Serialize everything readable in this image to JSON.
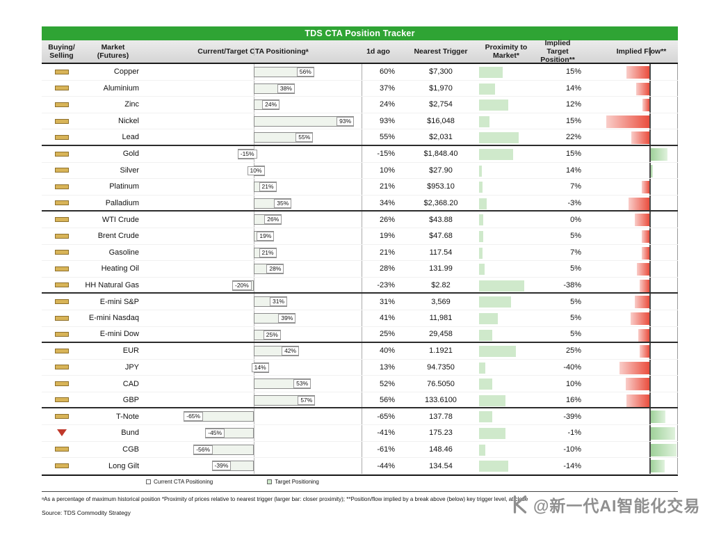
{
  "title": "TDS CTA Position Tracker",
  "header": {
    "columns": [
      "Buying/ Selling",
      "Market (Futures)",
      "Current/Target CTA Positioningᵃ",
      "1d ago",
      "Nearest Trigger",
      "Proximity to Market*",
      "Implied Target Position**",
      "Implied Flow**"
    ]
  },
  "chart_data": {
    "type": "table",
    "title": "TDS CTA Position Tracker",
    "columns": [
      "Buying/Selling",
      "Market (Futures)",
      "Current/Target CTA Positioning",
      "1d ago",
      "Nearest Trigger",
      "Proximity to Market",
      "Implied Target Position",
      "Implied Flow"
    ],
    "positioning_axis": "percent of maximum historical position, zero axis centered, range approx -100 to 100",
    "rows": [
      {
        "market": "Copper",
        "signal": "flat",
        "current": 56,
        "positioning_label": "56%",
        "one_day_ago": "60%",
        "nearest_trigger": "$7,300",
        "proximity": 0.45,
        "implied_target": "15%",
        "implied_flow": -41,
        "group_end": false
      },
      {
        "market": "Aluminium",
        "signal": "flat",
        "current": 38,
        "positioning_label": "38%",
        "one_day_ago": "37%",
        "nearest_trigger": "$1,970",
        "proximity": 0.3,
        "implied_target": "14%",
        "implied_flow": -24,
        "group_end": false
      },
      {
        "market": "Zinc",
        "signal": "flat",
        "current": 24,
        "positioning_label": "24%",
        "one_day_ago": "24%",
        "nearest_trigger": "$2,754",
        "proximity": 0.55,
        "implied_target": "12%",
        "implied_flow": -12,
        "group_end": false
      },
      {
        "market": "Nickel",
        "signal": "flat",
        "current": 93,
        "positioning_label": "93%",
        "one_day_ago": "93%",
        "nearest_trigger": "$16,048",
        "proximity": 0.2,
        "implied_target": "15%",
        "implied_flow": -78,
        "group_end": false
      },
      {
        "market": "Lead",
        "signal": "flat",
        "current": 55,
        "positioning_label": "55%",
        "one_day_ago": "55%",
        "nearest_trigger": "$2,031",
        "proximity": 0.75,
        "implied_target": "22%",
        "implied_flow": -33,
        "group_end": true
      },
      {
        "market": "Gold",
        "signal": "flat",
        "current": -15,
        "positioning_label": "-15%",
        "one_day_ago": "-15%",
        "nearest_trigger": "$1,848.40",
        "proximity": 0.65,
        "implied_target": "15%",
        "implied_flow": 30,
        "group_end": false
      },
      {
        "market": "Silver",
        "signal": "flat",
        "current": 10,
        "positioning_label": "10%",
        "one_day_ago": "10%",
        "nearest_trigger": "$27.90",
        "proximity": 0.05,
        "implied_target": "14%",
        "implied_flow": 4,
        "group_end": false
      },
      {
        "market": "Platinum",
        "signal": "flat",
        "current": 21,
        "positioning_label": "21%",
        "one_day_ago": "21%",
        "nearest_trigger": "$953.10",
        "proximity": 0.06,
        "implied_target": "7%",
        "implied_flow": -14,
        "group_end": false
      },
      {
        "market": "Palladium",
        "signal": "flat",
        "current": 35,
        "positioning_label": "35%",
        "one_day_ago": "34%",
        "nearest_trigger": "$2,368.20",
        "proximity": 0.15,
        "implied_target": "-3%",
        "implied_flow": -37,
        "group_end": true
      },
      {
        "market": "WTI Crude",
        "signal": "flat",
        "current": 26,
        "positioning_label": "26%",
        "one_day_ago": "26%",
        "nearest_trigger": "$43.88",
        "proximity": 0.08,
        "implied_target": "0%",
        "implied_flow": -26,
        "group_end": false
      },
      {
        "market": "Brent Crude",
        "signal": "flat",
        "current": 19,
        "positioning_label": "19%",
        "one_day_ago": "19%",
        "nearest_trigger": "$47.68",
        "proximity": 0.08,
        "implied_target": "5%",
        "implied_flow": -14,
        "group_end": false
      },
      {
        "market": "Gasoline",
        "signal": "flat",
        "current": 21,
        "positioning_label": "21%",
        "one_day_ago": "21%",
        "nearest_trigger": "117.54",
        "proximity": 0.06,
        "implied_target": "7%",
        "implied_flow": -14,
        "group_end": false
      },
      {
        "market": "Heating Oil",
        "signal": "flat",
        "current": 28,
        "positioning_label": "28%",
        "one_day_ago": "28%",
        "nearest_trigger": "131.99",
        "proximity": 0.1,
        "implied_target": "5%",
        "implied_flow": -23,
        "group_end": false
      },
      {
        "market": "HH Natural Gas",
        "signal": "flat",
        "current": -20,
        "positioning_label": "-20%",
        "one_day_ago": "-23%",
        "nearest_trigger": "$2.82",
        "proximity": 0.85,
        "implied_target": "-38%",
        "implied_flow": -18,
        "group_end": true
      },
      {
        "market": "E-mini S&P",
        "signal": "flat",
        "current": 31,
        "positioning_label": "31%",
        "one_day_ago": "31%",
        "nearest_trigger": "3,569",
        "proximity": 0.6,
        "implied_target": "5%",
        "implied_flow": -26,
        "group_end": false
      },
      {
        "market": "E-mini Nasdaq",
        "signal": "flat",
        "current": 39,
        "positioning_label": "39%",
        "one_day_ago": "41%",
        "nearest_trigger": "11,981",
        "proximity": 0.35,
        "implied_target": "5%",
        "implied_flow": -34,
        "group_end": false
      },
      {
        "market": "E-mini Dow",
        "signal": "flat",
        "current": 25,
        "positioning_label": "25%",
        "one_day_ago": "25%",
        "nearest_trigger": "29,458",
        "proximity": 0.25,
        "implied_target": "5%",
        "implied_flow": -20,
        "group_end": true
      },
      {
        "market": "EUR",
        "signal": "flat",
        "current": 42,
        "positioning_label": "42%",
        "one_day_ago": "40%",
        "nearest_trigger": "1.1921",
        "proximity": 0.7,
        "implied_target": "25%",
        "implied_flow": -17,
        "group_end": false
      },
      {
        "market": "JPY",
        "signal": "flat",
        "current": 14,
        "positioning_label": "14%",
        "one_day_ago": "13%",
        "nearest_trigger": "94.7350",
        "proximity": 0.12,
        "implied_target": "-40%",
        "implied_flow": -54,
        "group_end": false
      },
      {
        "market": "CAD",
        "signal": "flat",
        "current": 53,
        "positioning_label": "53%",
        "one_day_ago": "52%",
        "nearest_trigger": "76.5050",
        "proximity": 0.25,
        "implied_target": "10%",
        "implied_flow": -43,
        "group_end": false
      },
      {
        "market": "GBP",
        "signal": "flat",
        "current": 57,
        "positioning_label": "57%",
        "one_day_ago": "56%",
        "nearest_trigger": "133.6100",
        "proximity": 0.5,
        "implied_target": "16%",
        "implied_flow": -41,
        "group_end": true
      },
      {
        "market": "T-Note",
        "signal": "flat",
        "current": -65,
        "positioning_label": "-65%",
        "one_day_ago": "-65%",
        "nearest_trigger": "137.78",
        "proximity": 0.25,
        "implied_target": "-39%",
        "implied_flow": 26,
        "group_end": false
      },
      {
        "market": "Bund",
        "signal": "sell",
        "current": -45,
        "positioning_label": "-45%",
        "one_day_ago": "-41%",
        "nearest_trigger": "175.23",
        "proximity": 0.5,
        "implied_target": "-1%",
        "implied_flow": 44,
        "group_end": false
      },
      {
        "market": "CGB",
        "signal": "flat",
        "current": -56,
        "positioning_label": "-56%",
        "one_day_ago": "-61%",
        "nearest_trigger": "148.46",
        "proximity": 0.12,
        "implied_target": "-10%",
        "implied_flow": 46,
        "group_end": false
      },
      {
        "market": "Long Gilt",
        "signal": "flat",
        "current": -39,
        "positioning_label": "-39%",
        "one_day_ago": "-44%",
        "nearest_trigger": "134.54",
        "proximity": 0.55,
        "implied_target": "-14%",
        "implied_flow": 25,
        "group_end": false
      }
    ]
  },
  "legend": [
    {
      "label": "Current CTA Positioning",
      "swatch": "#ffffff"
    },
    {
      "label": "Target Positioning",
      "swatch": "#cfe9cb"
    }
  ],
  "footnote": "ᵃAs a percentage of maximum historical position *Proximity of prices relative to nearest trigger (larger bar: closer proximity); **Position/flow implied by a break above (below) key trigger level, at close",
  "source": "Source: TDS Commodity Strategy",
  "watermark": "@新一代AI智能化交易",
  "colors": {
    "title_bar": "#2fa434",
    "sell_flow_bar": "#ea4e3e",
    "buy_flow_bar": "#9fd19a",
    "proximity_bar": "#cfe9cb",
    "flat_signal": "#d8b458",
    "sell_signal": "#c0392b"
  }
}
